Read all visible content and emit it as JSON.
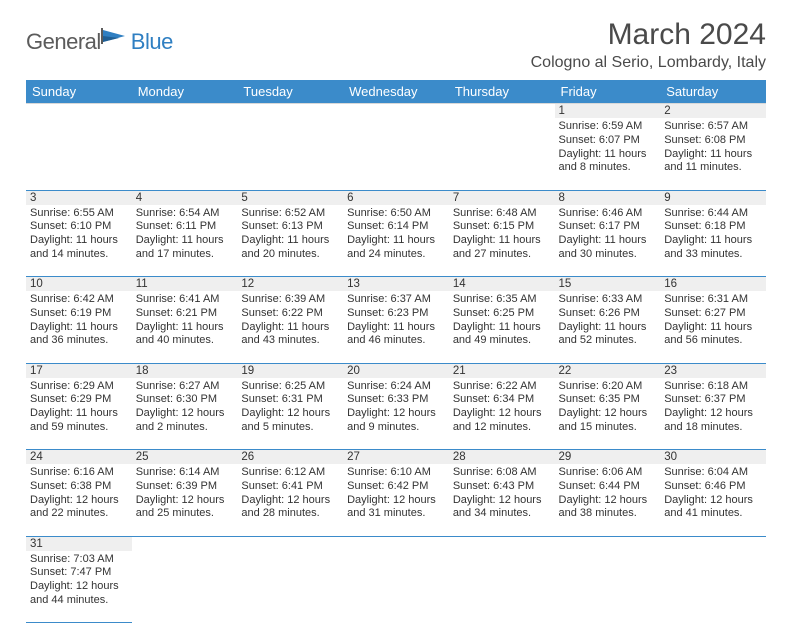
{
  "logo": {
    "part1": "General",
    "part2": "Blue"
  },
  "title": "March 2024",
  "location": "Cologno al Serio, Lombardy, Italy",
  "colors": {
    "header_bg": "#3b8bca",
    "header_text": "#ffffff",
    "daynum_bg": "#efefef",
    "border": "#3b8bca",
    "logo_gray": "#5b5b5b",
    "logo_blue": "#2f7fc2",
    "text": "#333333"
  },
  "day_headers": [
    "Sunday",
    "Monday",
    "Tuesday",
    "Wednesday",
    "Thursday",
    "Friday",
    "Saturday"
  ],
  "weeks": [
    [
      null,
      null,
      null,
      null,
      null,
      {
        "n": "1",
        "sr": "6:59 AM",
        "ss": "6:07 PM",
        "dl": "11 hours and 8 minutes."
      },
      {
        "n": "2",
        "sr": "6:57 AM",
        "ss": "6:08 PM",
        "dl": "11 hours and 11 minutes."
      }
    ],
    [
      {
        "n": "3",
        "sr": "6:55 AM",
        "ss": "6:10 PM",
        "dl": "11 hours and 14 minutes."
      },
      {
        "n": "4",
        "sr": "6:54 AM",
        "ss": "6:11 PM",
        "dl": "11 hours and 17 minutes."
      },
      {
        "n": "5",
        "sr": "6:52 AM",
        "ss": "6:13 PM",
        "dl": "11 hours and 20 minutes."
      },
      {
        "n": "6",
        "sr": "6:50 AM",
        "ss": "6:14 PM",
        "dl": "11 hours and 24 minutes."
      },
      {
        "n": "7",
        "sr": "6:48 AM",
        "ss": "6:15 PM",
        "dl": "11 hours and 27 minutes."
      },
      {
        "n": "8",
        "sr": "6:46 AM",
        "ss": "6:17 PM",
        "dl": "11 hours and 30 minutes."
      },
      {
        "n": "9",
        "sr": "6:44 AM",
        "ss": "6:18 PM",
        "dl": "11 hours and 33 minutes."
      }
    ],
    [
      {
        "n": "10",
        "sr": "6:42 AM",
        "ss": "6:19 PM",
        "dl": "11 hours and 36 minutes."
      },
      {
        "n": "11",
        "sr": "6:41 AM",
        "ss": "6:21 PM",
        "dl": "11 hours and 40 minutes."
      },
      {
        "n": "12",
        "sr": "6:39 AM",
        "ss": "6:22 PM",
        "dl": "11 hours and 43 minutes."
      },
      {
        "n": "13",
        "sr": "6:37 AM",
        "ss": "6:23 PM",
        "dl": "11 hours and 46 minutes."
      },
      {
        "n": "14",
        "sr": "6:35 AM",
        "ss": "6:25 PM",
        "dl": "11 hours and 49 minutes."
      },
      {
        "n": "15",
        "sr": "6:33 AM",
        "ss": "6:26 PM",
        "dl": "11 hours and 52 minutes."
      },
      {
        "n": "16",
        "sr": "6:31 AM",
        "ss": "6:27 PM",
        "dl": "11 hours and 56 minutes."
      }
    ],
    [
      {
        "n": "17",
        "sr": "6:29 AM",
        "ss": "6:29 PM",
        "dl": "11 hours and 59 minutes."
      },
      {
        "n": "18",
        "sr": "6:27 AM",
        "ss": "6:30 PM",
        "dl": "12 hours and 2 minutes."
      },
      {
        "n": "19",
        "sr": "6:25 AM",
        "ss": "6:31 PM",
        "dl": "12 hours and 5 minutes."
      },
      {
        "n": "20",
        "sr": "6:24 AM",
        "ss": "6:33 PM",
        "dl": "12 hours and 9 minutes."
      },
      {
        "n": "21",
        "sr": "6:22 AM",
        "ss": "6:34 PM",
        "dl": "12 hours and 12 minutes."
      },
      {
        "n": "22",
        "sr": "6:20 AM",
        "ss": "6:35 PM",
        "dl": "12 hours and 15 minutes."
      },
      {
        "n": "23",
        "sr": "6:18 AM",
        "ss": "6:37 PM",
        "dl": "12 hours and 18 minutes."
      }
    ],
    [
      {
        "n": "24",
        "sr": "6:16 AM",
        "ss": "6:38 PM",
        "dl": "12 hours and 22 minutes."
      },
      {
        "n": "25",
        "sr": "6:14 AM",
        "ss": "6:39 PM",
        "dl": "12 hours and 25 minutes."
      },
      {
        "n": "26",
        "sr": "6:12 AM",
        "ss": "6:41 PM",
        "dl": "12 hours and 28 minutes."
      },
      {
        "n": "27",
        "sr": "6:10 AM",
        "ss": "6:42 PM",
        "dl": "12 hours and 31 minutes."
      },
      {
        "n": "28",
        "sr": "6:08 AM",
        "ss": "6:43 PM",
        "dl": "12 hours and 34 minutes."
      },
      {
        "n": "29",
        "sr": "6:06 AM",
        "ss": "6:44 PM",
        "dl": "12 hours and 38 minutes."
      },
      {
        "n": "30",
        "sr": "6:04 AM",
        "ss": "6:46 PM",
        "dl": "12 hours and 41 minutes."
      }
    ],
    [
      {
        "n": "31",
        "sr": "7:03 AM",
        "ss": "7:47 PM",
        "dl": "12 hours and 44 minutes."
      },
      null,
      null,
      null,
      null,
      null,
      null
    ]
  ],
  "labels": {
    "sunrise": "Sunrise: ",
    "sunset": "Sunset: ",
    "daylight": "Daylight: "
  }
}
